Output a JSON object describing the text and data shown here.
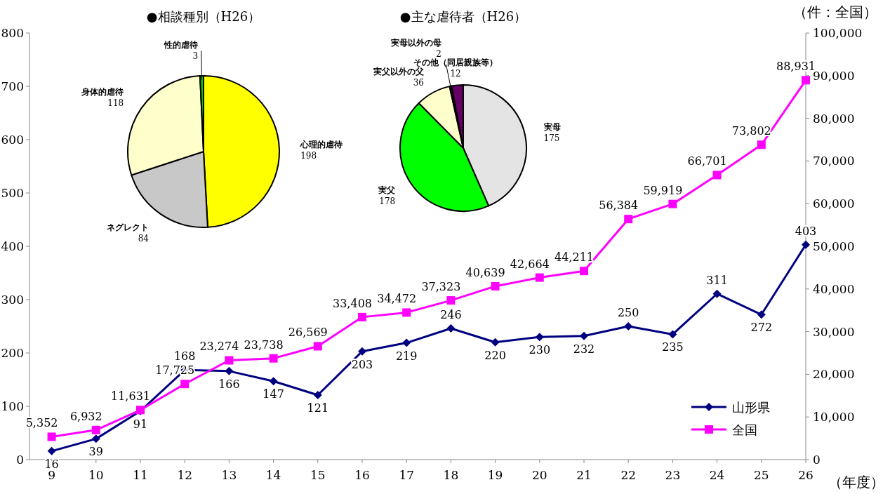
{
  "chart_data": [
    {
      "type": "line",
      "categories": [
        "9",
        "10",
        "11",
        "12",
        "13",
        "14",
        "15",
        "16",
        "17",
        "18",
        "19",
        "20",
        "21",
        "22",
        "23",
        "24",
        "25",
        "26"
      ],
      "xlabel": "（年度）",
      "y2label": "（件：全国）",
      "ylim": [
        0,
        800
      ],
      "yticks": [
        0,
        100,
        200,
        300,
        400,
        500,
        600,
        700,
        800
      ],
      "y2lim": [
        0,
        100000
      ],
      "y2ticks": [
        {
          "value": 0,
          "label": "0"
        },
        {
          "value": 10000,
          "label": "10,000"
        },
        {
          "value": 20000,
          "label": "20,000"
        },
        {
          "value": 30000,
          "label": "30,000"
        },
        {
          "value": 40000,
          "label": "40,000"
        },
        {
          "value": 50000,
          "label": "50,000"
        },
        {
          "value": 60000,
          "label": "60,000"
        },
        {
          "value": 70000,
          "label": "70,000"
        },
        {
          "value": 80000,
          "label": "80,000"
        },
        {
          "value": 90000,
          "label": "90,000"
        },
        {
          "value": 100000,
          "label": "100,000"
        }
      ],
      "legend": "bottom right",
      "series": [
        {
          "name": "山形県",
          "color": "#000080",
          "marker": "diamond",
          "values": [
            16,
            39,
            91,
            168,
            166,
            147,
            121,
            203,
            219,
            246,
            220,
            230,
            232,
            250,
            235,
            311,
            272,
            403
          ],
          "value_labels": [
            "16",
            "39",
            "91",
            "168",
            "166",
            "147",
            "121",
            "203",
            "219",
            "246",
            "220",
            "230",
            "232",
            "250",
            "235",
            "311",
            "272",
            "403"
          ]
        },
        {
          "name": "全国",
          "color": "#ff00ff",
          "marker": "square",
          "axis": "y2",
          "values": [
            5352,
            6932,
            11631,
            17725,
            23274,
            23738,
            26569,
            33408,
            34472,
            37323,
            40639,
            42664,
            44211,
            56384,
            59919,
            66701,
            73802,
            88931
          ],
          "value_labels": [
            "5,352",
            "6,932",
            "11,631",
            "17,725",
            "23,274",
            "23,738",
            "26,569",
            "33,408",
            "34,472",
            "37,323",
            "40,639",
            "42,664",
            "44,211",
            "56,384",
            "59,919",
            "66,701",
            "73,802",
            "88,931"
          ]
        }
      ]
    },
    {
      "type": "pie",
      "title": "●相談種別（H26）",
      "data_labels": true,
      "categories": [
        "心理的虐待",
        "ネグレクト",
        "身体的虐待",
        "性的虐待"
      ],
      "values": [
        198,
        84,
        118,
        3
      ],
      "colors": [
        "#ffff00",
        "#c8c8c8",
        "#ffffcc",
        "#00cc00"
      ]
    },
    {
      "type": "pie",
      "title": "●主な虐待者（H26）",
      "data_labels": true,
      "categories": [
        "実母",
        "実父",
        "実父以外の父",
        "実母以外の母",
        "その他（同居親族等）"
      ],
      "values": [
        175,
        178,
        36,
        2,
        12
      ],
      "colors": [
        "#e4e4e4",
        "#00ff00",
        "#ffffcc",
        "#333333",
        "#660066"
      ]
    }
  ]
}
